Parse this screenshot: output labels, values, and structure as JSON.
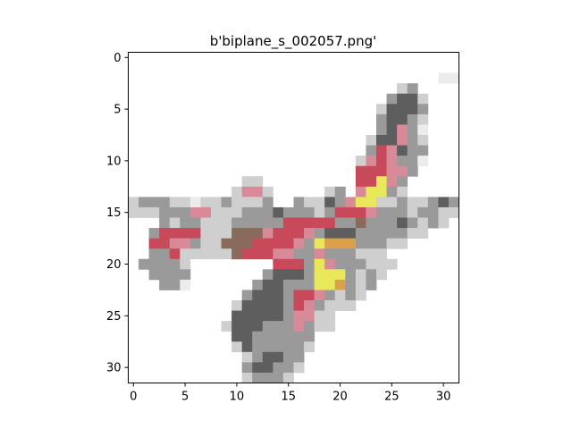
{
  "figure": {
    "title": "b'biplane_s_002057.png'"
  },
  "axes": {
    "x_ticks": [
      "0",
      "5",
      "10",
      "15",
      "20",
      "25",
      "30"
    ],
    "y_ticks": [
      "0",
      "5",
      "10",
      "15",
      "20",
      "25",
      "30"
    ]
  },
  "image": {
    "grid_size": 32,
    "description_colors": {
      "background": "#ffffff",
      "dark_gray": "#5e5e5e",
      "mid_gray": "#9a9a9a",
      "light_gray": "#cfcfcf",
      "red": "#c84a5a",
      "pink": "#d98a98",
      "yellow": "#e8e85a",
      "orange": "#d9a24a",
      "brown": "#8a6a5a"
    }
  }
}
